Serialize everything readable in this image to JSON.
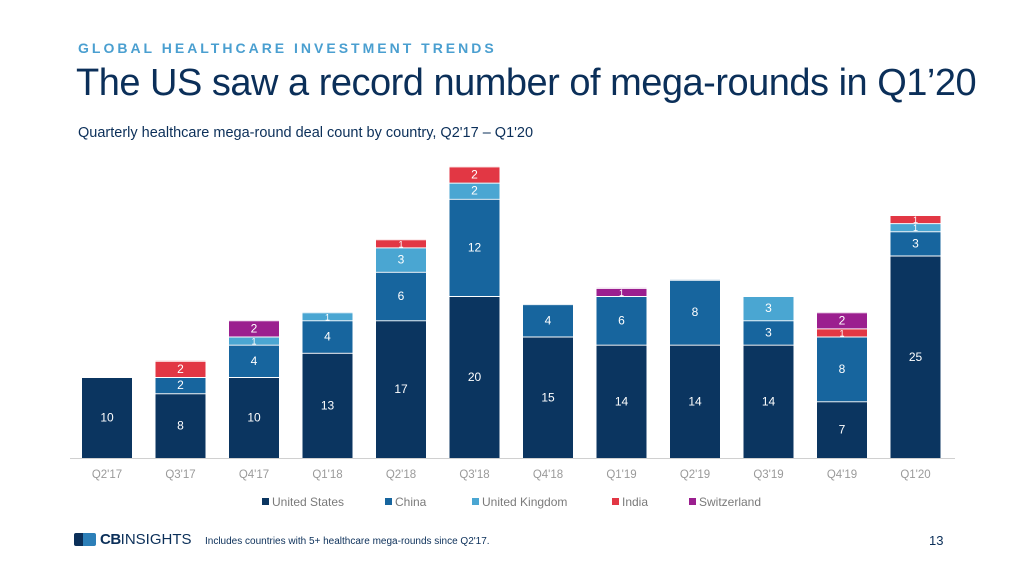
{
  "header": {
    "eyebrow": "GLOBAL HEALTHCARE INVESTMENT TRENDS",
    "title": "The US saw a record number of mega-rounds in Q1’20",
    "subtitle": "Quarterly healthcare mega-round deal count by country, Q2'17 – Q1'20"
  },
  "footer": {
    "logo_cb": "CB",
    "logo_insights": "INSIGHTS",
    "note": "Includes countries with 5+ healthcare mega-rounds since Q2'17.",
    "page_number": "13"
  },
  "chart_data": {
    "type": "bar",
    "stacked": true,
    "categories": [
      "Q2'17",
      "Q3'17",
      "Q4'17",
      "Q1'18",
      "Q2'18",
      "Q3'18",
      "Q4'18",
      "Q1'19",
      "Q2'19",
      "Q3'19",
      "Q4'19",
      "Q1'20"
    ],
    "series": [
      {
        "name": "United States",
        "color": "#0b3560",
        "values": [
          10,
          8,
          10,
          13,
          17,
          20,
          15,
          14,
          14,
          14,
          7,
          25
        ]
      },
      {
        "name": "China",
        "color": "#17659e",
        "values": [
          0,
          2,
          4,
          4,
          6,
          12,
          4,
          6,
          8,
          3,
          8,
          3
        ]
      },
      {
        "name": "United Kingdom",
        "color": "#4aa6d2",
        "values": [
          0,
          0,
          1,
          1,
          3,
          2,
          0,
          0,
          0,
          3,
          0,
          1
        ]
      },
      {
        "name": "India",
        "color": "#e23744",
        "values": [
          0,
          2,
          0,
          0,
          1,
          2,
          0,
          0,
          0,
          0,
          1,
          1
        ]
      },
      {
        "name": "Switzerland",
        "color": "#9b1f8f",
        "values": [
          0,
          0,
          2,
          0,
          0,
          0,
          0,
          1,
          0,
          0,
          2,
          0
        ]
      }
    ],
    "ylim": [
      0,
      37
    ],
    "grid": false,
    "legend_position": "bottom"
  }
}
